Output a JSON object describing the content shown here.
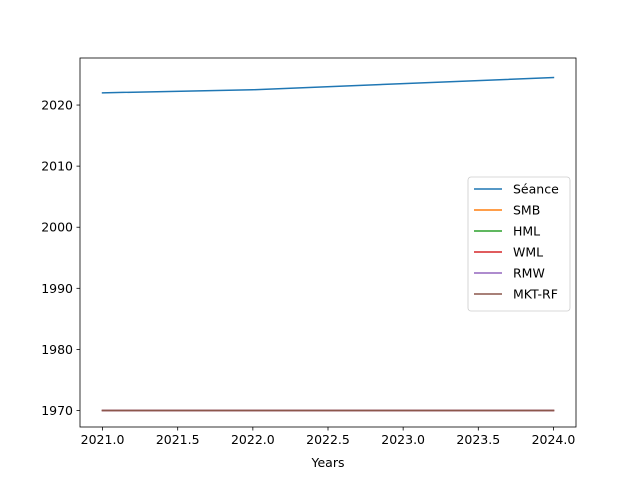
{
  "chart_data": {
    "type": "line",
    "xlabel": "Years",
    "ylabel": "",
    "title": "",
    "xlim": [
      2020.85,
      2024.15
    ],
    "ylim": [
      1967.3,
      2027.7
    ],
    "xticks": [
      2021.0,
      2021.5,
      2022.0,
      2022.5,
      2023.0,
      2023.5,
      2024.0
    ],
    "xtick_labels": [
      "2021.0",
      "2021.5",
      "2022.0",
      "2022.5",
      "2023.0",
      "2023.5",
      "2024.0"
    ],
    "yticks": [
      1970,
      1980,
      1990,
      2000,
      2010,
      2020
    ],
    "ytick_labels": [
      "1970",
      "1980",
      "1990",
      "2000",
      "2010",
      "2020"
    ],
    "grid": false,
    "legend_position": "center-right",
    "x": [
      2021,
      2022,
      2023,
      2024
    ],
    "series": [
      {
        "name": "Séance",
        "color": "#1f77b4",
        "values": [
          2022.0,
          2022.5,
          2023.5,
          2024.5
        ]
      },
      {
        "name": "SMB",
        "color": "#ff7f0e",
        "values": [
          1970,
          1970,
          1970,
          1970
        ]
      },
      {
        "name": "HML",
        "color": "#2ca02c",
        "values": [
          1970,
          1970,
          1970,
          1970
        ]
      },
      {
        "name": "WML",
        "color": "#d62728",
        "values": [
          1970,
          1970,
          1970,
          1970
        ]
      },
      {
        "name": "RMW",
        "color": "#9467bd",
        "values": [
          1970,
          1970,
          1970,
          1970
        ]
      },
      {
        "name": "MKT-RF",
        "color": "#8c564b",
        "values": [
          1970,
          1970,
          1970,
          1970
        ]
      }
    ]
  }
}
